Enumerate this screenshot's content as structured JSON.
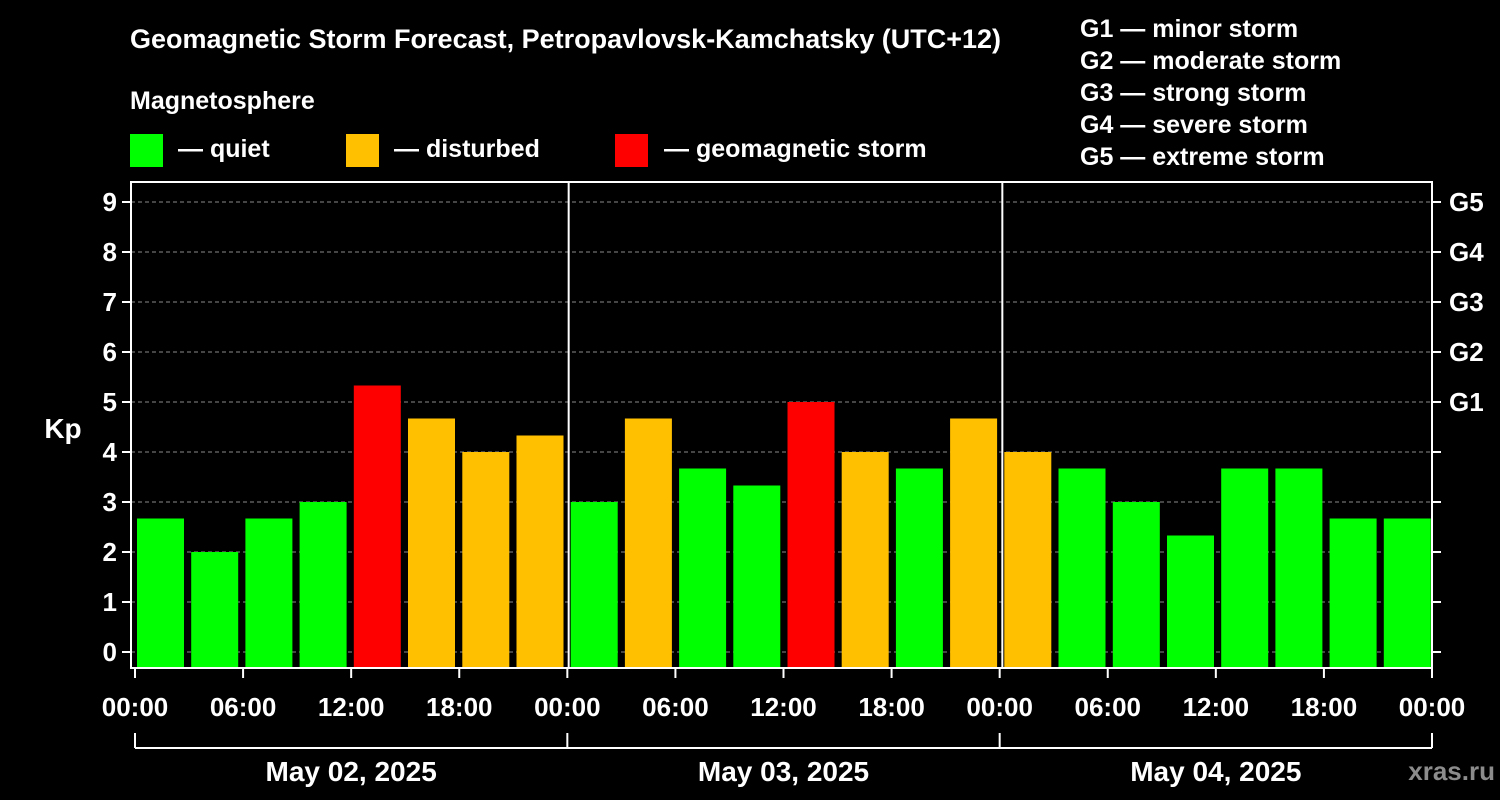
{
  "chart_data": {
    "type": "bar",
    "title": "Geomagnetic Storm Forecast, Petropavlovsk-Kamchatsky (UTC+12)",
    "ylabel": "Kp",
    "ylim": [
      0,
      9
    ],
    "yticks": [
      "0",
      "1",
      "2",
      "3",
      "4",
      "5",
      "6",
      "7",
      "8",
      "9"
    ],
    "right_axis_labels": [
      {
        "kp": 5,
        "label": "G1"
      },
      {
        "kp": 6,
        "label": "G2"
      },
      {
        "kp": 7,
        "label": "G3"
      },
      {
        "kp": 8,
        "label": "G4"
      },
      {
        "kp": 9,
        "label": "G5"
      }
    ],
    "storm_scale": [
      "G1 — minor storm",
      "G2 — moderate storm",
      "G3 — strong storm",
      "G4 — severe storm",
      "G5 — extreme storm"
    ],
    "legend": {
      "title": "Magnetosphere",
      "items": [
        {
          "label": "— quiet",
          "color": "#00ff00"
        },
        {
          "label": "— disturbed",
          "color": "#ffc000"
        },
        {
          "label": "— geomagnetic storm",
          "color": "#ff0000"
        }
      ]
    },
    "colors": {
      "quiet": "#00ff00",
      "disturbed": "#ffc000",
      "storm": "#ff0000",
      "grid": "#8a8a8a",
      "axis": "#ffffff"
    },
    "x_time_labels": [
      "00:00",
      "06:00",
      "12:00",
      "18:00",
      "00:00",
      "06:00",
      "12:00",
      "18:00",
      "00:00",
      "06:00",
      "12:00",
      "18:00",
      "00:00"
    ],
    "days": [
      "May 02, 2025",
      "May 03, 2025",
      "May 04, 2025"
    ],
    "bars_per_day": 8,
    "values": [
      2.67,
      2.0,
      2.67,
      3.0,
      5.33,
      4.67,
      4.0,
      4.33,
      3.0,
      4.67,
      3.67,
      3.33,
      5.0,
      4.0,
      3.67,
      4.67,
      4.0,
      3.67,
      3.0,
      2.33,
      3.67,
      3.67,
      2.67,
      2.67
    ],
    "levels": [
      "quiet",
      "quiet",
      "quiet",
      "quiet",
      "storm",
      "disturbed",
      "disturbed",
      "disturbed",
      "quiet",
      "disturbed",
      "quiet",
      "quiet",
      "storm",
      "disturbed",
      "quiet",
      "disturbed",
      "disturbed",
      "quiet",
      "quiet",
      "quiet",
      "quiet",
      "quiet",
      "quiet",
      "quiet"
    ],
    "grid": true
  },
  "watermark": "xras.ru"
}
